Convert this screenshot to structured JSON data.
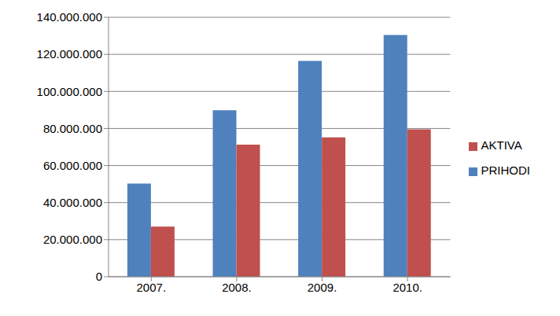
{
  "chart_data": {
    "type": "bar",
    "categories": [
      "2007.",
      "2008.",
      "2009.",
      "2010."
    ],
    "series": [
      {
        "name": "PRIHODI",
        "color": "#4f81bd",
        "values": [
          50300000,
          89800000,
          116500000,
          130500000
        ]
      },
      {
        "name": "AKTIVA",
        "color": "#c0504d",
        "values": [
          27000000,
          71300000,
          75200000,
          79500000
        ]
      }
    ],
    "ylim": [
      0,
      140000000
    ],
    "yticks": [
      0,
      {
        "value": 20000000,
        "label": "20.000.000"
      },
      {
        "value": 40000000,
        "label": "40.000.000"
      },
      {
        "value": 60000000,
        "label": "60.000.000"
      },
      {
        "value": 80000000,
        "label": "80.000.000"
      },
      {
        "value": 100000000,
        "label": "100.000.000"
      },
      {
        "value": 120000000,
        "label": "120.000.000"
      },
      {
        "value": 140000000,
        "label": "140.000.000"
      }
    ],
    "grid": true,
    "legend": "right"
  }
}
